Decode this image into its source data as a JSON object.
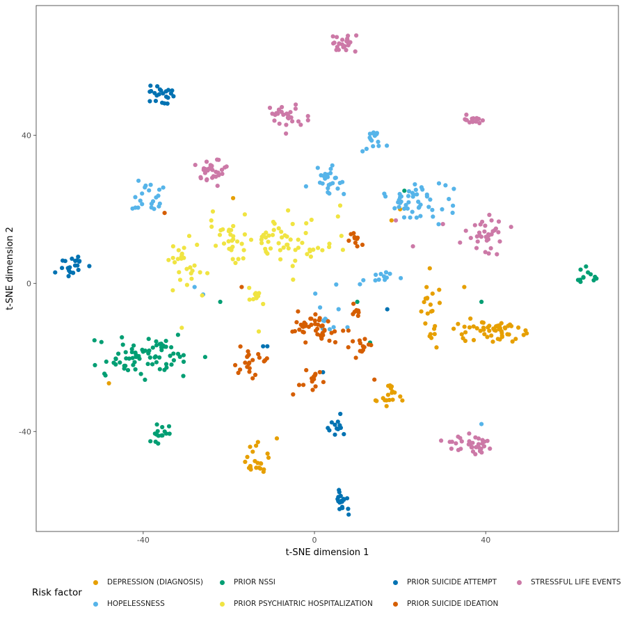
{
  "chart_data": {
    "type": "scatter",
    "xlabel": "t-SNE dimension 1",
    "ylabel": "t-SNE dimension 2",
    "xlim": [
      -65,
      71
    ],
    "ylim": [
      -67,
      75
    ],
    "x_ticks": [
      -40,
      0,
      40
    ],
    "y_ticks": [
      -40,
      0,
      40
    ],
    "x_tick_labels": [
      "-40",
      "0",
      "40"
    ],
    "y_tick_labels": [
      "-40",
      "0",
      "40"
    ],
    "grid": false,
    "legend": {
      "title": "Risk factor",
      "position": "bottom"
    },
    "series": [
      {
        "name": "DEPRESSION (DIAGNOSIS)",
        "color": "#E69F00",
        "clusters": [
          {
            "cx": 41,
            "cy": -13,
            "sx": 5,
            "sy": 2,
            "n": 55
          },
          {
            "cx": 28,
            "cy": -9,
            "sx": 2.5,
            "sy": 7,
            "n": 22
          },
          {
            "cx": 18,
            "cy": -30,
            "sx": 2,
            "sy": 3,
            "n": 18
          },
          {
            "cx": -13,
            "cy": -48,
            "sx": 2,
            "sy": 3,
            "n": 22
          }
        ],
        "points": [
          [
            -48,
            -27
          ],
          [
            -19,
            23
          ],
          [
            20,
            20
          ],
          [
            18,
            17
          ],
          [
            35,
            -1
          ]
        ]
      },
      {
        "name": "HOPELESSNESS",
        "color": "#56B4E9",
        "clusters": [
          {
            "cx": 25,
            "cy": 22,
            "sx": 5,
            "sy": 3,
            "n": 48
          },
          {
            "cx": 14,
            "cy": 38,
            "sx": 2,
            "sy": 1.5,
            "n": 15
          },
          {
            "cx": 3,
            "cy": 27,
            "sx": 2.5,
            "sy": 3,
            "n": 25
          },
          {
            "cx": -39,
            "cy": 23,
            "sx": 3,
            "sy": 3,
            "n": 22
          },
          {
            "cx": 17,
            "cy": 2,
            "sx": 2.5,
            "sy": 1.5,
            "n": 10
          },
          {
            "cx": 5,
            "cy": -6,
            "sx": 3,
            "sy": 6,
            "n": 14
          }
        ],
        "points": [
          [
            -28,
            -1
          ],
          [
            -26,
            -3
          ],
          [
            39,
            -38
          ]
        ]
      },
      {
        "name": "PRIOR NSSI",
        "color": "#009E73",
        "clusters": [
          {
            "cx": -40,
            "cy": -20,
            "sx": 7,
            "sy": 4,
            "n": 75
          },
          {
            "cx": -36,
            "cy": -40,
            "sx": 2,
            "sy": 2,
            "n": 15
          },
          {
            "cx": 63,
            "cy": 2,
            "sx": 1.5,
            "sy": 1.5,
            "n": 12
          }
        ],
        "points": [
          [
            -22,
            -5
          ],
          [
            10,
            -5
          ],
          [
            21,
            25
          ],
          [
            39,
            -5
          ],
          [
            13,
            -16
          ]
        ]
      },
      {
        "name": "PRIOR PSYCHIATRIC HOSPITALIZATION",
        "color": "#F0E442",
        "clusters": [
          {
            "cx": -6,
            "cy": 12,
            "sx": 7,
            "sy": 4,
            "n": 55
          },
          {
            "cx": -20,
            "cy": 12,
            "sx": 3.5,
            "sy": 6,
            "n": 30
          },
          {
            "cx": -30,
            "cy": 5,
            "sx": 4,
            "sy": 4,
            "n": 25
          },
          {
            "cx": -13,
            "cy": -4,
            "sx": 2,
            "sy": 2,
            "n": 12
          }
        ],
        "points": [
          [
            -33,
            10
          ],
          [
            -31,
            -12
          ],
          [
            6,
            21
          ],
          [
            -5,
            1
          ],
          [
            -13,
            -13
          ]
        ]
      },
      {
        "name": "PRIOR SUICIDE ATTEMPT",
        "color": "#0072B2",
        "clusters": [
          {
            "cx": -36,
            "cy": 51,
            "sx": 2.5,
            "sy": 1.5,
            "n": 22
          },
          {
            "cx": -57,
            "cy": 5,
            "sx": 2.5,
            "sy": 1.8,
            "n": 22
          },
          {
            "cx": 6,
            "cy": -59,
            "sx": 1.5,
            "sy": 2,
            "n": 18
          },
          {
            "cx": 5,
            "cy": -38,
            "sx": 1.2,
            "sy": 2,
            "n": 12
          }
        ],
        "points": [
          [
            -12,
            -17
          ],
          [
            -11,
            -17
          ],
          [
            2,
            -24
          ],
          [
            17,
            -7
          ]
        ]
      },
      {
        "name": "PRIOR SUICIDE IDEATION",
        "color": "#D55E00",
        "clusters": [
          {
            "cx": 0,
            "cy": -12,
            "sx": 4,
            "sy": 3,
            "n": 45
          },
          {
            "cx": -15,
            "cy": -22,
            "sx": 2.5,
            "sy": 2.5,
            "n": 22
          },
          {
            "cx": -1,
            "cy": -26,
            "sx": 2,
            "sy": 2,
            "n": 15
          },
          {
            "cx": 11,
            "cy": -17,
            "sx": 2,
            "sy": 2,
            "n": 14
          },
          {
            "cx": 10,
            "cy": 12,
            "sx": 1.5,
            "sy": 1,
            "n": 9
          },
          {
            "cx": 9,
            "cy": -8,
            "sx": 1,
            "sy": 2,
            "n": 7
          }
        ],
        "points": [
          [
            -35,
            19
          ],
          [
            -17,
            -1
          ],
          [
            -5,
            -30
          ],
          [
            14,
            -26
          ],
          [
            10,
            10
          ]
        ]
      },
      {
        "name": "STRESSFUL LIFE EVENTS",
        "color": "#CC79A7",
        "clusters": [
          {
            "cx": 7,
            "cy": 65,
            "sx": 2,
            "sy": 1.5,
            "n": 25
          },
          {
            "cx": -7,
            "cy": 45,
            "sx": 2.5,
            "sy": 2,
            "n": 28
          },
          {
            "cx": 37,
            "cy": 44,
            "sx": 1.5,
            "sy": 1.2,
            "n": 15
          },
          {
            "cx": -24,
            "cy": 30,
            "sx": 3,
            "sy": 2.5,
            "n": 30
          },
          {
            "cx": 40,
            "cy": 14,
            "sx": 3,
            "sy": 4,
            "n": 32
          },
          {
            "cx": 36,
            "cy": -44,
            "sx": 3,
            "sy": 2,
            "n": 35
          }
        ],
        "points": [
          [
            23,
            10
          ],
          [
            30,
            16
          ],
          [
            34,
            11
          ],
          [
            19,
            17
          ]
        ]
      }
    ]
  }
}
